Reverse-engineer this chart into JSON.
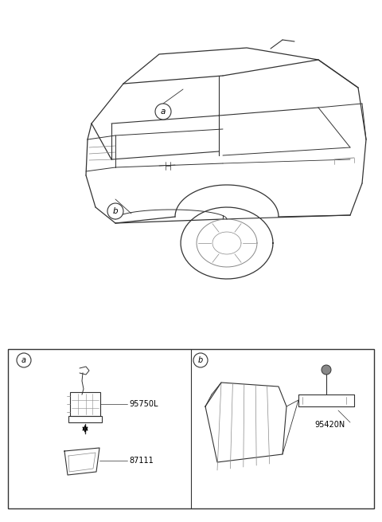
{
  "bg_color": "#ffffff",
  "fig_width": 4.8,
  "fig_height": 6.55,
  "dpi": 100,
  "part_95750L": "95750L",
  "part_87111": "87111",
  "part_95420N": "95420N",
  "line_color": "#333333",
  "light_color": "#888888",
  "lighter_color": "#aaaaaa"
}
